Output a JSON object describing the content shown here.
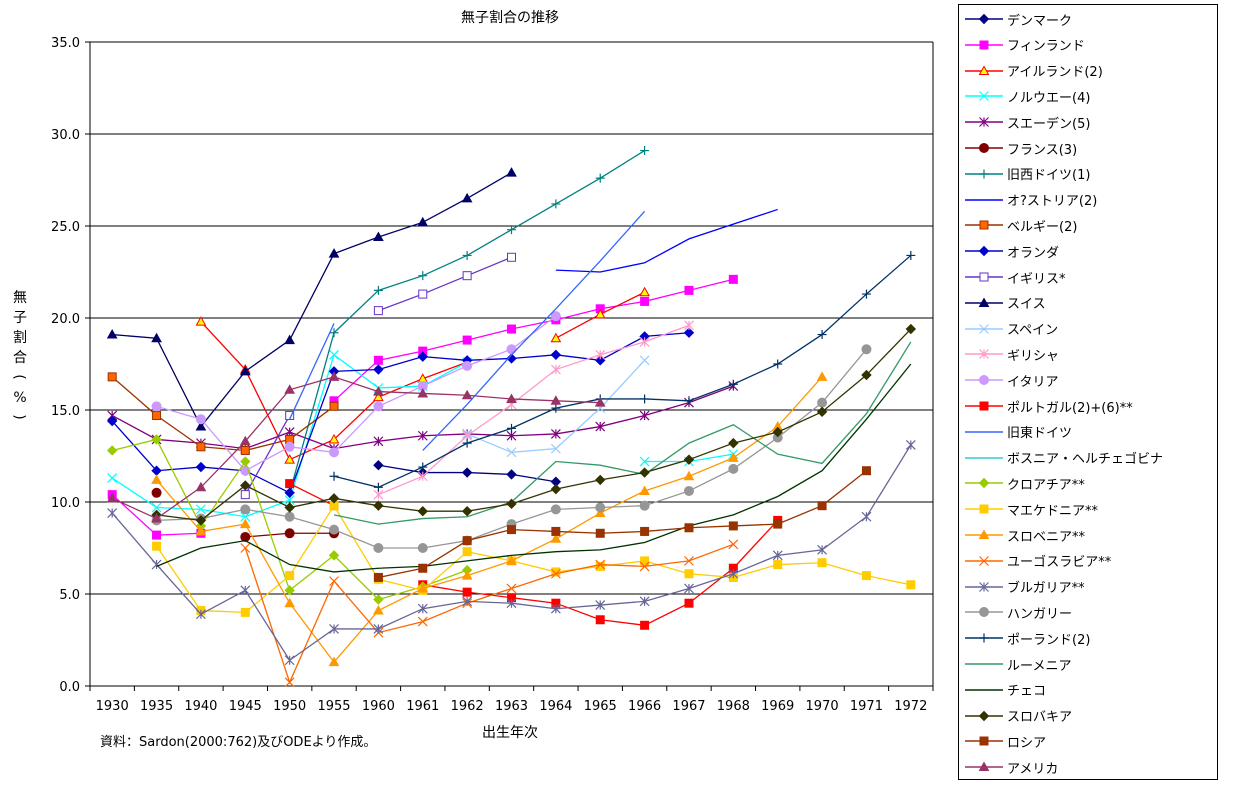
{
  "chart_data": {
    "type": "line",
    "title": "無子割合の推移",
    "xlabel": "出生年次",
    "ylabel": "無子割合(%)",
    "ylim": [
      0,
      35
    ],
    "yticks": [
      "0.0",
      "5.0",
      "10.0",
      "15.0",
      "20.0",
      "25.0",
      "30.0",
      "35.0"
    ],
    "categories": [
      "1930",
      "1935",
      "1940",
      "1945",
      "1950",
      "1955",
      "1960",
      "1961",
      "1962",
      "1963",
      "1964",
      "1965",
      "1966",
      "1967",
      "1968",
      "1969",
      "1970",
      "1971",
      "1972"
    ],
    "grid": "horizontal",
    "legend_position": "right",
    "source": "資料：Sardon(2000:762)及びODEより作成。",
    "series": [
      {
        "name": "デンマーク",
        "color": "#000080",
        "marker": "diamond",
        "values": [
          null,
          null,
          null,
          null,
          null,
          null,
          12.0,
          11.6,
          11.6,
          11.5,
          11.1,
          null,
          null,
          null,
          null,
          null,
          null,
          null,
          null
        ]
      },
      {
        "name": "フィンランド",
        "color": "#ff00ff",
        "marker": "square",
        "values": [
          10.4,
          8.2,
          8.3,
          null,
          null,
          15.5,
          17.7,
          18.2,
          18.8,
          19.4,
          19.9,
          20.5,
          20.9,
          21.5,
          22.1,
          null,
          null,
          null,
          null
        ]
      },
      {
        "name": "アイルランド(2)",
        "color": "#ff0000",
        "marker": "triangle-yellow",
        "values": [
          null,
          null,
          19.8,
          17.2,
          12.3,
          13.4,
          15.7,
          16.7,
          17.6,
          null,
          18.9,
          20.2,
          21.4,
          null,
          null,
          null,
          null,
          null,
          null
        ]
      },
      {
        "name": "ノルウエー(4)",
        "color": "#00ffff",
        "marker": "x",
        "values": [
          11.3,
          9.7,
          9.6,
          9.2,
          10.1,
          18.0,
          16.2,
          16.3,
          17.6,
          null,
          null,
          null,
          12.2,
          12.2,
          12.6,
          null,
          null,
          null,
          null
        ]
      },
      {
        "name": "スエーデン(5)",
        "color": "#800080",
        "marker": "asterisk",
        "values": [
          14.7,
          13.4,
          13.2,
          12.9,
          13.8,
          12.9,
          13.3,
          13.6,
          13.7,
          13.6,
          13.7,
          14.1,
          14.7,
          15.4,
          16.3,
          null,
          null,
          null,
          null
        ]
      },
      {
        "name": "フランス(3)",
        "color": "#800000",
        "marker": "circle",
        "values": [
          null,
          10.5,
          null,
          8.1,
          8.3,
          8.3,
          null,
          null,
          null,
          null,
          null,
          null,
          null,
          null,
          null,
          null,
          null,
          null,
          null
        ]
      },
      {
        "name": "旧西ドイツ(1)",
        "color": "#008080",
        "marker": "plus",
        "values": [
          null,
          null,
          null,
          null,
          10.5,
          19.2,
          21.5,
          22.3,
          23.4,
          24.8,
          26.2,
          27.6,
          29.1,
          null,
          null,
          null,
          null,
          null,
          null
        ]
      },
      {
        "name": "オ?ストリア(2)",
        "color": "#0000ff",
        "marker": "none",
        "values": [
          null,
          null,
          null,
          null,
          null,
          null,
          null,
          null,
          null,
          null,
          22.6,
          22.5,
          23.0,
          24.3,
          25.1,
          25.9,
          null,
          null,
          null
        ]
      },
      {
        "name": "ベルギー(2)",
        "color": "#993300",
        "marker": "square-orange",
        "values": [
          16.8,
          14.7,
          13.0,
          12.8,
          13.4,
          15.2,
          null,
          null,
          null,
          null,
          null,
          null,
          null,
          null,
          null,
          null,
          null,
          null,
          null
        ]
      },
      {
        "name": "オランダ",
        "color": "#0000cc",
        "marker": "diamond",
        "values": [
          14.4,
          11.7,
          11.9,
          11.7,
          10.5,
          17.1,
          17.2,
          17.9,
          17.7,
          17.8,
          18.0,
          17.7,
          19.0,
          19.2,
          null,
          null,
          null,
          null,
          null
        ]
      },
      {
        "name": "イギリス*",
        "color": "#6633cc",
        "marker": "square-hollow",
        "values": [
          null,
          null,
          null,
          10.4,
          14.7,
          null,
          20.4,
          21.3,
          22.3,
          23.3,
          null,
          null,
          null,
          null,
          null,
          null,
          null,
          null,
          null
        ]
      },
      {
        "name": "スイス",
        "color": "#000066",
        "marker": "triangle",
        "values": [
          19.1,
          18.9,
          14.1,
          17.1,
          18.8,
          23.5,
          24.4,
          25.2,
          26.5,
          27.9,
          null,
          null,
          null,
          null,
          null,
          null,
          null,
          null,
          null
        ]
      },
      {
        "name": "スペイン",
        "color": "#99ccff",
        "marker": "x",
        "values": [
          null,
          null,
          null,
          null,
          null,
          null,
          null,
          null,
          13.7,
          12.7,
          12.9,
          15.1,
          17.7,
          null,
          null,
          null,
          null,
          null,
          null
        ]
      },
      {
        "name": "ギリシャ",
        "color": "#ff99cc",
        "marker": "asterisk",
        "values": [
          null,
          null,
          null,
          null,
          null,
          null,
          10.4,
          11.4,
          13.6,
          15.3,
          17.2,
          18.0,
          18.7,
          19.6,
          null,
          null,
          null,
          null,
          null
        ]
      },
      {
        "name": "イタリア",
        "color": "#cc99ff",
        "marker": "circle",
        "values": [
          null,
          15.2,
          14.5,
          11.7,
          13.0,
          12.7,
          15.2,
          16.3,
          17.4,
          18.3,
          20.1,
          null,
          null,
          null,
          null,
          null,
          null,
          null,
          null
        ]
      },
      {
        "name": "ポルトガル(2)+(6)**",
        "color": "#ff0000",
        "marker": "square",
        "values": [
          null,
          null,
          null,
          null,
          11.0,
          9.8,
          null,
          5.5,
          5.1,
          4.8,
          4.5,
          3.6,
          3.3,
          4.5,
          6.4,
          9.0,
          null,
          null,
          null
        ]
      },
      {
        "name": "旧東ドイツ",
        "color": "#3366ff",
        "marker": "none",
        "values": [
          17.0,
          null,
          null,
          null,
          14.5,
          19.7,
          null,
          12.8,
          15.3,
          18.0,
          20.5,
          23.1,
          25.8,
          null,
          null,
          null,
          null,
          null,
          null
        ]
      },
      {
        "name": "ボスニア・ヘルチェゴビナ",
        "color": "#33cccc",
        "marker": "none",
        "values": [
          null,
          null,
          null,
          null,
          null,
          null,
          null,
          null,
          null,
          null,
          null,
          null,
          null,
          null,
          null,
          null,
          null,
          null,
          null
        ]
      },
      {
        "name": "クロアチア**",
        "color": "#99cc00",
        "marker": "diamond",
        "values": [
          12.8,
          13.4,
          8.7,
          12.2,
          5.2,
          7.1,
          4.7,
          5.4,
          6.3,
          null,
          null,
          null,
          null,
          null,
          null,
          null,
          null,
          null,
          null
        ]
      },
      {
        "name": "マエケドニア**",
        "color": "#ffcc00",
        "marker": "square",
        "values": [
          null,
          7.6,
          4.1,
          4.0,
          6.0,
          9.8,
          5.8,
          5.2,
          7.3,
          6.8,
          6.2,
          6.5,
          6.8,
          6.1,
          5.9,
          6.6,
          6.7,
          6.0,
          5.5
        ]
      },
      {
        "name": "スロベニア**",
        "color": "#ff9900",
        "marker": "triangle",
        "values": [
          null,
          11.2,
          8.4,
          8.8,
          4.5,
          1.3,
          4.1,
          5.3,
          6.0,
          6.8,
          8.0,
          9.4,
          10.6,
          11.4,
          12.4,
          14.1,
          16.8,
          null,
          null
        ]
      },
      {
        "name": "ユーゴスラビア**",
        "color": "#ff6600",
        "marker": "x",
        "values": [
          null,
          null,
          null,
          7.5,
          0.2,
          5.7,
          2.9,
          3.5,
          4.5,
          5.3,
          6.1,
          6.6,
          6.5,
          6.8,
          7.7,
          null,
          null,
          null,
          null
        ]
      },
      {
        "name": "ブルガリア**",
        "color": "#666699",
        "marker": "asterisk",
        "values": [
          9.4,
          6.6,
          3.9,
          5.2,
          1.4,
          3.1,
          3.1,
          4.2,
          4.6,
          4.5,
          4.2,
          4.4,
          4.6,
          5.3,
          6.1,
          7.1,
          7.4,
          9.2,
          13.1
        ]
      },
      {
        "name": "ハンガリー",
        "color": "#969696",
        "marker": "circle",
        "values": [
          null,
          9.0,
          9.1,
          9.6,
          9.2,
          8.5,
          7.5,
          7.5,
          7.9,
          8.8,
          9.6,
          9.7,
          9.8,
          10.6,
          11.8,
          13.5,
          15.4,
          18.3,
          null
        ]
      },
      {
        "name": "ポーランド(2)",
        "color": "#003366",
        "marker": "plus",
        "values": [
          null,
          null,
          null,
          null,
          null,
          11.4,
          10.8,
          11.9,
          13.2,
          14.0,
          15.1,
          15.6,
          15.6,
          15.5,
          16.4,
          17.5,
          19.1,
          21.3,
          23.4
        ]
      },
      {
        "name": "ルーメニア",
        "color": "#339966",
        "marker": "none",
        "values": [
          null,
          null,
          null,
          null,
          null,
          9.3,
          8.8,
          9.1,
          9.2,
          10.0,
          12.2,
          12.0,
          11.5,
          13.2,
          14.2,
          12.6,
          12.1,
          14.8,
          18.7
        ]
      },
      {
        "name": "チェコ",
        "color": "#003300",
        "marker": "none",
        "values": [
          null,
          6.5,
          7.5,
          7.9,
          6.6,
          6.2,
          6.4,
          6.5,
          6.8,
          7.1,
          7.3,
          7.4,
          7.8,
          8.7,
          9.3,
          10.3,
          11.7,
          14.5,
          17.5
        ]
      },
      {
        "name": "スロバキア",
        "color": "#333300",
        "marker": "diamond",
        "values": [
          null,
          9.3,
          9.0,
          10.9,
          9.7,
          10.2,
          9.8,
          9.5,
          9.5,
          9.9,
          10.7,
          11.2,
          11.6,
          12.3,
          13.2,
          13.8,
          14.9,
          16.9,
          19.4
        ]
      },
      {
        "name": "ロシア",
        "color": "#993300",
        "marker": "square",
        "values": [
          null,
          null,
          null,
          null,
          null,
          null,
          5.9,
          6.4,
          7.9,
          8.5,
          8.4,
          8.3,
          8.4,
          8.6,
          8.7,
          8.8,
          9.8,
          11.7,
          null
        ]
      },
      {
        "name": "アメリカ",
        "color": "#993366",
        "marker": "triangle",
        "values": [
          10.2,
          9.1,
          10.8,
          13.3,
          16.1,
          16.8,
          16.0,
          15.9,
          15.8,
          15.6,
          15.5,
          15.4,
          null,
          null,
          null,
          null,
          null,
          null,
          null
        ]
      }
    ]
  }
}
